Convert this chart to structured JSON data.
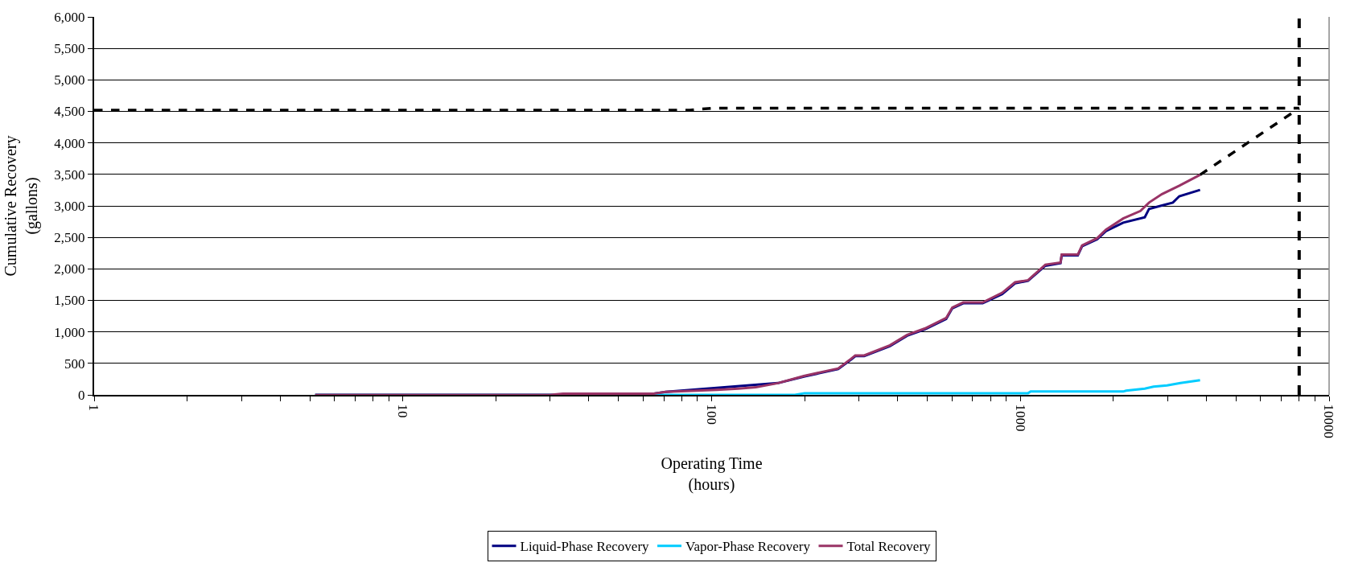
{
  "chart_data": {
    "type": "line",
    "xlabel": "Operating Time\n(hours)",
    "ylabel": "Cumulative Recovery\n(gallons)",
    "log": "x",
    "grid": "y",
    "legend": "bottom",
    "marker": "none",
    "line_style": "solid",
    "xlim": [
      1,
      10000
    ],
    "xticks": [
      1,
      {
        "value": 2,
        "label": null
      },
      {
        "value": 3,
        "label": null
      },
      {
        "value": 4,
        "label": null
      },
      {
        "value": 5,
        "label": null
      },
      {
        "value": 6,
        "label": null
      },
      {
        "value": 7,
        "label": null
      },
      {
        "value": 8,
        "label": null
      },
      {
        "value": 9,
        "label": null
      },
      10,
      {
        "value": 20,
        "label": null
      },
      {
        "value": 30,
        "label": null
      },
      {
        "value": 40,
        "label": null
      },
      {
        "value": 50,
        "label": null
      },
      {
        "value": 60,
        "label": null
      },
      {
        "value": 70,
        "label": null
      },
      {
        "value": 80,
        "label": null
      },
      {
        "value": 90,
        "label": null
      },
      100,
      {
        "value": 200,
        "label": null
      },
      {
        "value": 300,
        "label": null
      },
      {
        "value": 400,
        "label": null
      },
      {
        "value": 500,
        "label": null
      },
      {
        "value": 600,
        "label": null
      },
      {
        "value": 700,
        "label": null
      },
      {
        "value": 800,
        "label": null
      },
      {
        "value": 900,
        "label": null
      },
      1000,
      {
        "value": 2000,
        "label": null
      },
      {
        "value": 3000,
        "label": null
      },
      {
        "value": 4000,
        "label": null
      },
      {
        "value": 5000,
        "label": null
      },
      {
        "value": 6000,
        "label": null
      },
      {
        "value": 7000,
        "label": null
      },
      {
        "value": 8000,
        "label": null
      },
      {
        "value": 9000,
        "label": null
      },
      10000
    ],
    "ylim": [
      0,
      6000
    ],
    "yticks": [
      0,
      500,
      {
        "value": 1000,
        "label": "1,000"
      },
      {
        "value": 1500,
        "label": "1,500"
      },
      {
        "value": 2000,
        "label": "2,000"
      },
      {
        "value": 2500,
        "label": "2,500"
      },
      {
        "value": 3000,
        "label": "3,000"
      },
      {
        "value": 3500,
        "label": "3,500"
      },
      {
        "value": 4000,
        "label": "4,000"
      },
      {
        "value": 4500,
        "label": "4,500"
      },
      {
        "value": 5000,
        "label": "5,000"
      },
      {
        "value": 5500,
        "label": "5,500"
      },
      {
        "value": 6000,
        "label": "6,000"
      }
    ],
    "ref_lines": [
      {
        "axis": "x",
        "value": 8000,
        "color": "#000000",
        "line_style": "dashed"
      }
    ],
    "series": [
      {
        "name": "Liquid-Phase Recovery",
        "color": "#000080",
        "x": [
          5.2,
          30,
          33,
          65,
          71,
          104,
          122,
          139,
          164,
          199,
          257,
          283,
          292,
          312,
          378,
          430,
          490,
          575,
          602,
          653,
          755,
          873,
          961,
          1059,
          1205,
          1349,
          1361,
          1535,
          1585,
          1774,
          1892,
          2153,
          2529,
          2612,
          3119,
          3273,
          3820
        ],
        "values": [
          0,
          0,
          null,
          20,
          47,
          null,
          null,
          null,
          187,
          290,
          410,
          560,
          615,
          615,
          775,
          940,
          1040,
          1205,
          1375,
          1455,
          1455,
          1600,
          1770,
          1810,
          2050,
          2090,
          2215,
          2215,
          2360,
          2470,
          2600,
          2733,
          2820,
          2953,
          3053,
          3153,
          3253
        ]
      },
      {
        "name": "Vapor-Phase Recovery",
        "color": "#00ccff",
        "x": [
          5.2,
          186,
          200,
          1059,
          1080,
          2153,
          2200,
          2529,
          2700,
          2985,
          3300,
          3820
        ],
        "values": [
          0,
          0,
          27,
          27,
          53,
          53,
          67,
          100,
          130,
          150,
          187,
          233
        ]
      },
      {
        "name": "Total Recovery",
        "color": "#993366",
        "x": [
          5.2,
          30,
          33,
          65,
          71,
          104,
          122,
          139,
          164,
          199,
          257,
          283,
          292,
          312,
          378,
          430,
          490,
          575,
          602,
          653,
          755,
          873,
          961,
          1059,
          1205,
          1349,
          1361,
          1535,
          1585,
          1774,
          1892,
          2153,
          2449,
          2612,
          2876,
          3273,
          3820
        ],
        "values": [
          0,
          0,
          20,
          20,
          47,
          80,
          100,
          120,
          187,
          300,
          420,
          573,
          627,
          627,
          787,
          953,
          1053,
          1220,
          1387,
          1467,
          1467,
          1620,
          1787,
          1820,
          2067,
          2100,
          2227,
          2227,
          2373,
          2487,
          2620,
          2800,
          2920,
          3053,
          3187,
          3320,
          3493
        ]
      },
      {
        "color": "#000000",
        "line_style": "dashed",
        "x": [
          1,
          85,
          100,
          8000
        ],
        "values": [
          4520,
          4520,
          4550,
          4550
        ]
      },
      {
        "color": "#000000",
        "line_style": "dashed",
        "x": [
          3820,
          8000
        ],
        "values": [
          3493,
          4550
        ]
      }
    ]
  }
}
